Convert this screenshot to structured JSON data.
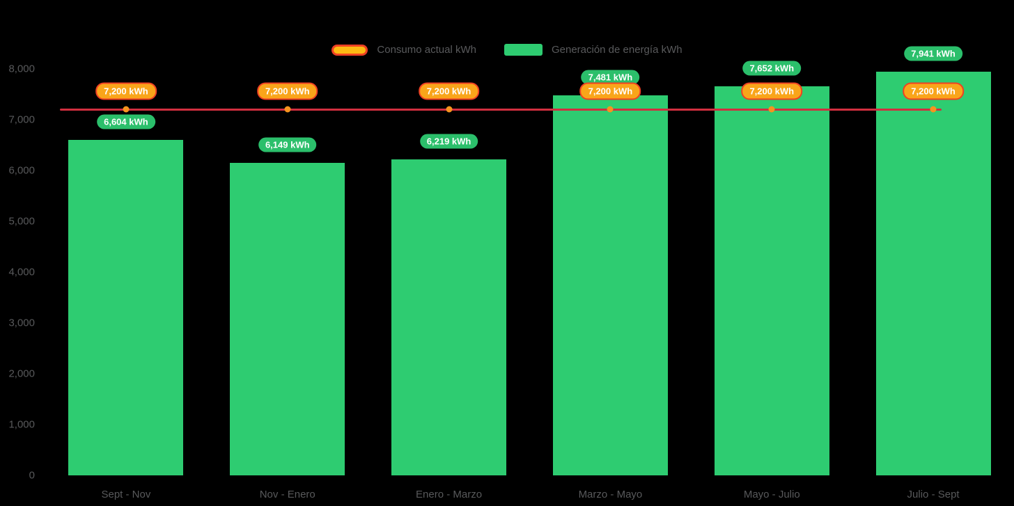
{
  "legend": {
    "consumption_label": "Consumo actual kWh",
    "generation_label": "Generación de energía kWh"
  },
  "colors": {
    "background": "#000000",
    "bar": "#2ECC71",
    "bar_label_bg": "#2BBF6B",
    "line": "#D22F3F",
    "point": "#F7941E",
    "consumption_label_bg": "#F9A51A",
    "consumption_label_border": "#EF4123",
    "legend_consumption_fill": "#FDB913",
    "axis_text": "#58595B",
    "value_label_text": "#FFFFFF"
  },
  "chart_data": {
    "type": "bar",
    "categories": [
      "Sept - Nov",
      "Nov - Enero",
      "Enero - Marzo",
      "Marzo - Mayo",
      "Mayo - Julio",
      "Julio - Sept"
    ],
    "series": [
      {
        "name": "Consumo actual kWh",
        "type": "line",
        "values": [
          7200,
          7200,
          7200,
          7200,
          7200,
          7200
        ]
      },
      {
        "name": "Generación de energía kWh",
        "type": "bar",
        "values": [
          6604,
          6149,
          6219,
          7481,
          7652,
          7941
        ]
      }
    ],
    "consumption_labels": [
      "7,200 kWh",
      "7,200 kWh",
      "7,200 kWh",
      "7,200 kWh",
      "7,200 kWh",
      "7,200 kWh"
    ],
    "generation_labels": [
      "6,604 kWh",
      "6,149 kWh",
      "6,219 kWh",
      "7,481 kWh",
      "7,652 kWh",
      "7,941 kWh"
    ],
    "title": "",
    "xlabel": "",
    "ylabel": "",
    "ylim": [
      0,
      8000
    ],
    "ytick_labels": [
      "0",
      "1,000",
      "2,000",
      "3,000",
      "4,000",
      "5,000",
      "6,000",
      "7,000",
      "8,000"
    ],
    "grid": false,
    "legend_position": "top"
  }
}
